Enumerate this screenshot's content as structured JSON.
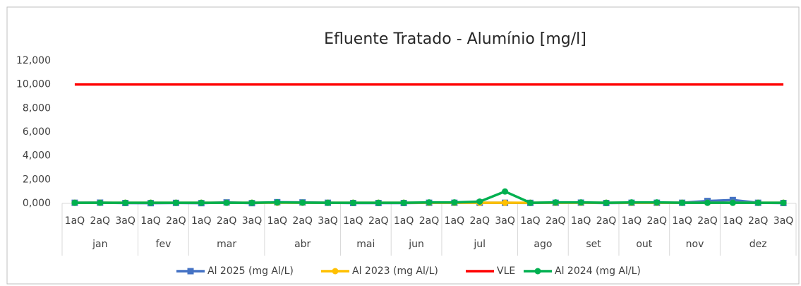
{
  "chart_data": {
    "type": "line",
    "title": "Efluente Tratado - Alumínio [mg/l]",
    "months": [
      {
        "label": "jan",
        "quarters": [
          "1aQ",
          "2aQ",
          "3aQ"
        ]
      },
      {
        "label": "fev",
        "quarters": [
          "1aQ",
          "2aQ"
        ]
      },
      {
        "label": "mar",
        "quarters": [
          "1aQ",
          "2aQ",
          "3aQ"
        ]
      },
      {
        "label": "abr",
        "quarters": [
          "1aQ",
          "2aQ",
          "3aQ"
        ]
      },
      {
        "label": "mai",
        "quarters": [
          "1aQ",
          "2aQ"
        ]
      },
      {
        "label": "jun",
        "quarters": [
          "1aQ",
          "2aQ"
        ]
      },
      {
        "label": "jul",
        "quarters": [
          "1aQ",
          "2aQ",
          "3aQ"
        ]
      },
      {
        "label": "ago",
        "quarters": [
          "1aQ",
          "2aQ"
        ]
      },
      {
        "label": "set",
        "quarters": [
          "1aQ",
          "2aQ"
        ]
      },
      {
        "label": "out",
        "quarters": [
          "1aQ",
          "2aQ"
        ]
      },
      {
        "label": "nov",
        "quarters": [
          "1aQ",
          "2aQ"
        ]
      },
      {
        "label": "dez",
        "quarters": [
          "1aQ",
          "2aQ",
          "3aQ"
        ]
      }
    ],
    "series": [
      {
        "name": "Al 2025 (mg Al/L)",
        "color": "#4472c4",
        "marker": "square",
        "values": [
          0.05,
          0.06,
          0.03,
          0.02,
          0.04,
          0.02,
          0.08,
          0.02,
          0.1,
          0.08,
          0.05,
          0.03,
          0.03,
          0.03,
          0.05,
          0.05,
          0.05,
          0.05,
          0.04,
          0.05,
          0.06,
          0.03,
          0.05,
          0.05,
          0.05,
          0.2,
          0.28,
          0.05,
          0.03
        ]
      },
      {
        "name": "Al 2023 (mg Al/L)",
        "color": "#ffc000",
        "marker": "circle",
        "values": [
          0.05,
          0.05,
          0.05,
          0.05,
          0.05,
          0.05,
          0.05,
          0.05,
          0.05,
          0.05,
          0.05,
          0.05,
          0.05,
          0.05,
          0.05,
          0.05,
          0.05,
          0.05,
          0.05,
          0.05,
          0.05,
          0.05,
          0.05,
          0.05,
          0.05,
          0.05,
          0.05,
          0.05,
          0.05
        ]
      },
      {
        "name": "VLE",
        "color": "#ff0000",
        "marker": "none",
        "values": [
          10,
          10,
          10,
          10,
          10,
          10,
          10,
          10,
          10,
          10,
          10,
          10,
          10,
          10,
          10,
          10,
          10,
          10,
          10,
          10,
          10,
          10,
          10,
          10,
          10,
          10,
          10,
          10,
          10
        ]
      },
      {
        "name": "Al 2024 (mg Al/L)",
        "color": "#00b050",
        "marker": "circle",
        "values": [
          0.05,
          0.05,
          0.05,
          0.05,
          0.05,
          0.05,
          0.05,
          0.05,
          0.08,
          0.06,
          0.05,
          0.05,
          0.05,
          0.05,
          0.08,
          0.08,
          0.15,
          1.0,
          0.05,
          0.08,
          0.08,
          0.05,
          0.08,
          0.08,
          0.05,
          0.05,
          0.05,
          0.05,
          0.05
        ]
      }
    ],
    "ylim": [
      0,
      12
    ],
    "yticks": [
      {
        "value": 0,
        "label": "0,000"
      },
      {
        "value": 2,
        "label": "2,000"
      },
      {
        "value": 4,
        "label": "4,000"
      },
      {
        "value": 6,
        "label": "6,000"
      },
      {
        "value": 8,
        "label": "8,000"
      },
      {
        "value": 10,
        "label": "10,000"
      },
      {
        "value": 12,
        "label": "12,000"
      }
    ],
    "grid": false,
    "legend": "bottom"
  }
}
